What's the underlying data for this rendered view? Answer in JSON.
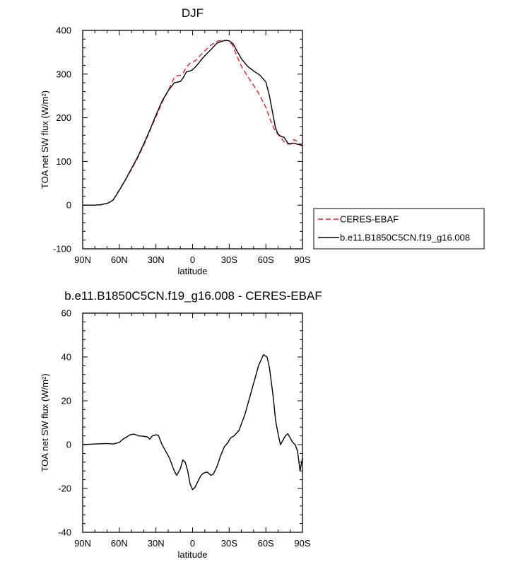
{
  "chart_data": [
    {
      "type": "line",
      "title": "DJF",
      "xlabel": "latitude",
      "ylabel": "TOA net SW flux (W/m²)",
      "xlim": [
        -90,
        90
      ],
      "ylim": [
        -100,
        400
      ],
      "x_ticks": [
        -90,
        -60,
        -30,
        0,
        30,
        60,
        90
      ],
      "x_tick_labels": [
        "90N",
        "60N",
        "30N",
        "0",
        "30S",
        "60S",
        "90S"
      ],
      "y_ticks": [
        -100,
        0,
        100,
        200,
        300,
        400
      ],
      "y_tick_labels": [
        "-100",
        "0",
        "100",
        "200",
        "300",
        "400"
      ],
      "legend": {
        "placement": "right"
      },
      "series": [
        {
          "name": "CERES-EBAF",
          "color": "#e0202a",
          "dash": "dashed",
          "x": [
            -90,
            -85,
            -80,
            -75,
            -70,
            -67,
            -65,
            -60,
            -55,
            -50,
            -45,
            -40,
            -35,
            -30,
            -25,
            -20,
            -15,
            -12,
            -10,
            -8,
            -5,
            -2,
            0,
            3,
            6,
            10,
            15,
            20,
            25,
            30,
            33,
            36,
            40,
            45,
            50,
            55,
            60,
            63,
            66,
            68,
            70,
            72,
            75,
            78,
            80,
            83,
            85,
            87,
            89,
            90
          ],
          "y": [
            0,
            0,
            0,
            1,
            4,
            8,
            12,
            35,
            58,
            82,
            108,
            137,
            170,
            202,
            235,
            262,
            292,
            297,
            297,
            301,
            316,
            325,
            327,
            332,
            342,
            353,
            366,
            375,
            378,
            376,
            365,
            343,
            318,
            295,
            274,
            252,
            224,
            200,
            180,
            168,
            162,
            155,
            145,
            140,
            140,
            150,
            147,
            140,
            138,
            140
          ]
        },
        {
          "name": "b.e11.B1850C5CN.f19_g16.008",
          "color": "#000000",
          "dash": "solid",
          "x": [
            -90,
            -85,
            -80,
            -75,
            -70,
            -67,
            -65,
            -60,
            -55,
            -50,
            -45,
            -40,
            -35,
            -30,
            -25,
            -20,
            -15,
            -12,
            -10,
            -8,
            -5,
            -2,
            0,
            3,
            6,
            10,
            15,
            20,
            25,
            28,
            30,
            33,
            36,
            40,
            45,
            50,
            55,
            60,
            63,
            66,
            68,
            70,
            72,
            75,
            78,
            80,
            83,
            85,
            87,
            89,
            90
          ],
          "y": [
            0,
            0,
            0,
            1,
            4,
            8,
            12,
            34,
            58,
            84,
            110,
            140,
            172,
            206,
            238,
            262,
            280,
            282,
            283,
            290,
            305,
            307,
            310,
            318,
            329,
            342,
            356,
            371,
            376,
            377,
            376,
            370,
            355,
            335,
            318,
            307,
            298,
            282,
            250,
            205,
            176,
            163,
            158,
            155,
            142,
            140,
            142,
            140,
            139,
            137,
            136
          ]
        }
      ]
    },
    {
      "type": "line",
      "title": "b.e11.B1850C5CN.f19_g16.008 - CERES-EBAF",
      "xlabel": "latitude",
      "ylabel": "TOA net SW flux (W/m²)",
      "xlim": [
        -90,
        90
      ],
      "ylim": [
        -40,
        60
      ],
      "x_ticks": [
        -90,
        -60,
        -30,
        0,
        30,
        60,
        90
      ],
      "x_tick_labels": [
        "90N",
        "60N",
        "30N",
        "0",
        "30S",
        "60S",
        "90S"
      ],
      "y_ticks": [
        -40,
        -20,
        0,
        20,
        40,
        60
      ],
      "y_tick_labels": [
        "-40",
        "-20",
        "0",
        "20",
        "40",
        "60"
      ],
      "series": [
        {
          "color": "#000000",
          "dash": "solid",
          "x": [
            -90,
            -80,
            -70,
            -65,
            -60,
            -57,
            -54,
            -51,
            -48,
            -44,
            -40,
            -37,
            -35,
            -33,
            -30,
            -28,
            -25,
            -22,
            -19,
            -17,
            -15,
            -13,
            -10,
            -8,
            -6,
            -4,
            -2,
            0,
            2,
            5,
            7,
            9,
            12,
            15,
            17,
            20,
            23,
            26,
            29,
            31,
            34,
            38,
            43,
            46,
            50,
            54,
            58,
            61,
            63,
            66,
            68,
            70,
            72,
            74,
            76,
            78,
            80,
            82,
            84,
            86,
            88,
            90
          ],
          "y": [
            0,
            0.3,
            0.5,
            0.3,
            1,
            2.5,
            3.5,
            4.5,
            4.8,
            4.0,
            3.8,
            3.5,
            2.5,
            4.0,
            4.5,
            4.2,
            0,
            -3,
            -6,
            -9,
            -12,
            -14,
            -11,
            -7,
            -8,
            -12,
            -18,
            -20.5,
            -19.5,
            -16,
            -14,
            -13,
            -12.5,
            -14,
            -13.5,
            -10,
            -5,
            -1,
            1,
            3,
            4,
            6.5,
            14,
            20,
            28,
            36,
            41,
            40,
            35,
            22,
            11,
            5,
            0,
            2,
            4,
            5,
            3,
            1,
            0,
            -3,
            -12,
            -6
          ]
        }
      ]
    }
  ]
}
